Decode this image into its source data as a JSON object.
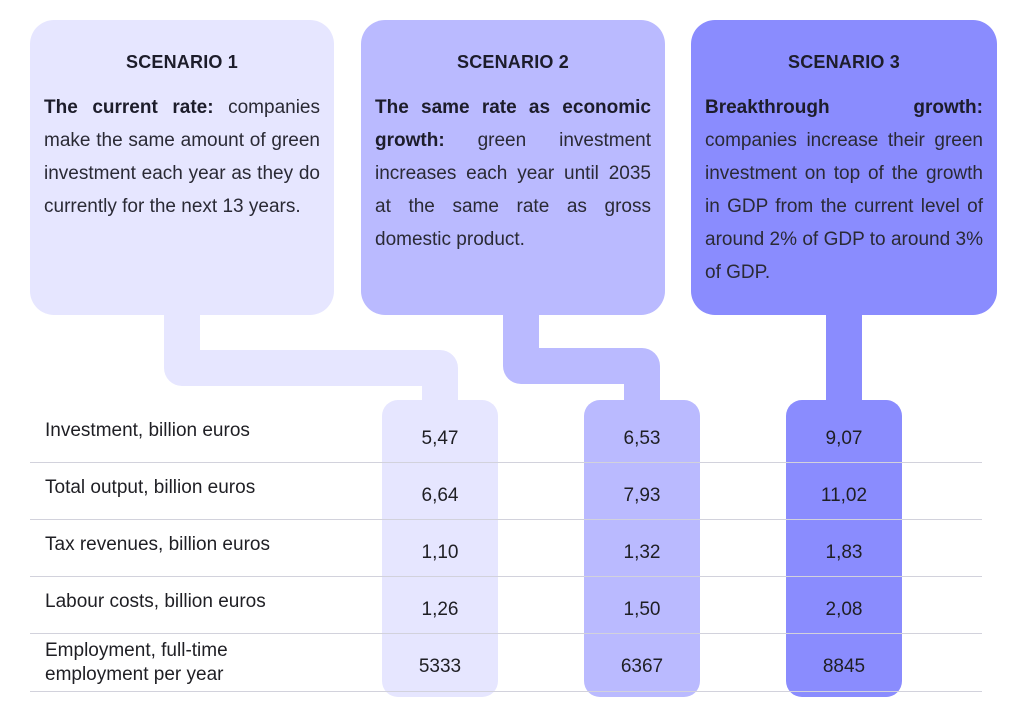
{
  "scenarios": [
    {
      "title": "SCENARIO 1",
      "lead": "The current rate:",
      "text": " companies make the same amount of green investment each year as they do currently for the next 13 years.",
      "color": "#e6e6ff"
    },
    {
      "title": "SCENARIO 2",
      "lead": "The same rate as economic growth:",
      "text": " green investment increases each year until 2035 at the same rate as gross domestic product.",
      "color": "#babaff"
    },
    {
      "title": "SCENARIO 3",
      "lead": "Breakthrough growth:",
      "text": " companies increase their green investment on top of the growth in GDP from the current level of around 2% of GDP to around 3% of GDP.",
      "color": "#8a8cfe"
    }
  ],
  "chart_data": {
    "type": "table",
    "columns": [
      "SCENARIO 1",
      "SCENARIO 2",
      "SCENARIO 3"
    ],
    "rows": [
      {
        "label": "Investment, billion euros",
        "values": [
          "5,47",
          "6,53",
          "9,07"
        ]
      },
      {
        "label": "Total output, billion euros",
        "values": [
          "6,64",
          "7,93",
          "11,02"
        ]
      },
      {
        "label": "Tax revenues, billion euros",
        "values": [
          "1,10",
          "1,32",
          "1,83"
        ]
      },
      {
        "label": "Labour costs, billion euros",
        "values": [
          "1,26",
          "1,50",
          "2,08"
        ]
      },
      {
        "label": "Employment, full-time employment per year",
        "values": [
          "5333",
          "6367",
          "8845"
        ]
      }
    ]
  }
}
